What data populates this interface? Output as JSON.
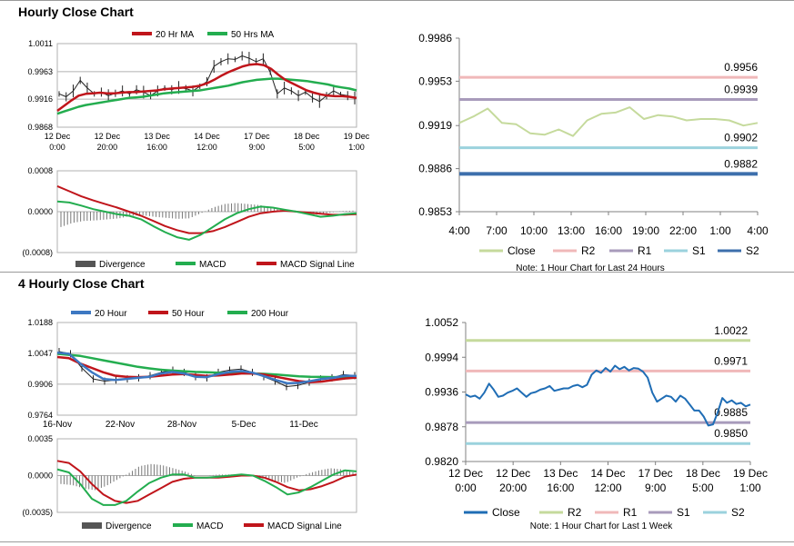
{
  "sections": {
    "hourly_title": "Hourly Close Chart",
    "four_hourly_title": "4 Hourly Close Chart"
  },
  "colors": {
    "ma_short": "#c0151b",
    "ma_mid": "#23ad4f",
    "ma_long_blue": "#3d78c2",
    "price": "#222222",
    "close_green": "#c5da9c",
    "r2": "#f0b8b9",
    "r1": "#a89bbb",
    "s1": "#9bd2dd",
    "s2": "#3d6fac",
    "close_blue": "#1f6db5",
    "r2_green": "#c5da9c",
    "r1_pink": "#f0b8b9",
    "s1_purple": "#a89bbb",
    "s2_cyan": "#9bd2dd",
    "divergence": "#777777"
  },
  "chart_data": [
    {
      "id": "hourly_price",
      "type": "line",
      "legend": [
        "20 Hr MA",
        "50 Hrs MA"
      ],
      "yticks": [
        "1.0011",
        "0.9963",
        "0.9916",
        "0.9868"
      ],
      "ylim": [
        0.9868,
        1.0011
      ],
      "xticks": [
        [
          "12 Dec",
          "0:00"
        ],
        [
          "12 Dec",
          "20:00"
        ],
        [
          "13 Dec",
          "16:00"
        ],
        [
          "14 Dec",
          "12:00"
        ],
        [
          "17 Dec",
          "9:00"
        ],
        [
          "18 Dec",
          "5:00"
        ],
        [
          "19 Dec",
          "1:00"
        ]
      ],
      "series": [
        {
          "name": "Price",
          "values": [
            0.9925,
            0.992,
            0.993,
            0.9948,
            0.9935,
            0.9925,
            0.9928,
            0.9922,
            0.9926,
            0.993,
            0.9925,
            0.9932,
            0.9928,
            0.9922,
            0.993,
            0.9935,
            0.9932,
            0.9936,
            0.9934,
            0.993,
            0.9938,
            0.9946,
            0.9972,
            0.998,
            0.9985,
            0.9984,
            0.999,
            0.9986,
            0.998,
            0.9985,
            0.9962,
            0.9925,
            0.9935,
            0.993,
            0.9922,
            0.9928,
            0.9918,
            0.9912,
            0.9922,
            0.993,
            0.9924,
            0.9922,
            0.9918
          ]
        },
        {
          "name": "20 Hr MA",
          "values": [
            0.9896,
            0.9905,
            0.9914,
            0.9922,
            0.9925,
            0.9926,
            0.9927,
            0.9926,
            0.9926,
            0.9927,
            0.9928,
            0.9928,
            0.9929,
            0.993,
            0.9931,
            0.9933,
            0.9934,
            0.9935,
            0.9936,
            0.9937,
            0.9939,
            0.9943,
            0.9949,
            0.9956,
            0.9962,
            0.9967,
            0.9972,
            0.9975,
            0.9976,
            0.9974,
            0.9968,
            0.9958,
            0.9949,
            0.9943,
            0.9937,
            0.9931,
            0.9927,
            0.9924,
            0.9922,
            0.9921,
            0.9921,
            0.992,
            0.9918
          ]
        },
        {
          "name": "50 Hrs MA",
          "values": [
            0.9891,
            0.9895,
            0.9899,
            0.9903,
            0.9906,
            0.9908,
            0.991,
            0.9912,
            0.9914,
            0.9916,
            0.9918,
            0.9919,
            0.992,
            0.9922,
            0.9924,
            0.9926,
            0.9927,
            0.9928,
            0.9929,
            0.993,
            0.9931,
            0.9933,
            0.9935,
            0.9937,
            0.9939,
            0.9942,
            0.9945,
            0.9947,
            0.9949,
            0.995,
            0.9951,
            0.9951,
            0.995,
            0.9949,
            0.9948,
            0.9947,
            0.9945,
            0.9943,
            0.9941,
            0.9938,
            0.9936,
            0.9934,
            0.9931
          ]
        }
      ]
    },
    {
      "id": "hourly_macd",
      "type": "line",
      "legend": [
        "Divergence",
        "MACD",
        "MACD Signal Line"
      ],
      "yticks": [
        "0.0008",
        "0.0000",
        "(0.0008)"
      ],
      "ylim": [
        -0.0008,
        0.0008
      ],
      "series": [
        {
          "name": "MACD",
          "values": [
            0.0002,
            0.00018,
            0.00012,
            5e-05,
            0.0,
            -5e-05,
            -8e-05,
            -0.00015,
            -0.00028,
            -0.0004,
            -0.0005,
            -0.00055,
            -0.00045,
            -0.0003,
            -0.00015,
            -3e-05,
            5e-05,
            0.0001,
            8e-05,
            4e-05,
            0.0,
            -5e-05,
            -0.0001,
            -8e-05,
            -5e-05,
            -3e-05
          ]
        },
        {
          "name": "MACD Signal Line",
          "values": [
            0.0005,
            0.0004,
            0.0003,
            0.00022,
            0.00015,
            8e-05,
            0.0,
            -8e-05,
            -0.00018,
            -0.00028,
            -0.00036,
            -0.00042,
            -0.00042,
            -0.00038,
            -0.0003,
            -0.0002,
            -0.0001,
            -3e-05,
            0.0,
            2e-05,
            0.0,
            -2e-05,
            -4e-05,
            -6e-05,
            -6e-05,
            -5e-05
          ]
        },
        {
          "name": "Divergence",
          "values": [
            -0.0003,
            -0.00022,
            -0.00018,
            -0.00017,
            -0.00015,
            -0.00013,
            -8e-05,
            -7e-05,
            -0.0001,
            -0.00012,
            -0.00014,
            -0.00013,
            -3e-05,
            8e-05,
            0.00015,
            0.00017,
            0.00015,
            0.00013,
            8e-05,
            2e-05,
            0.0,
            -3e-05,
            -6e-05,
            -2e-05,
            1e-05,
            2e-05
          ]
        }
      ]
    },
    {
      "id": "hourly_pivots",
      "type": "line",
      "yticks": [
        "0.9986",
        "0.9953",
        "0.9919",
        "0.9886",
        "0.9853"
      ],
      "ylim": [
        0.9853,
        0.9986
      ],
      "xticks": [
        "4:00",
        "7:00",
        "10:00",
        "13:00",
        "16:00",
        "19:00",
        "22:00",
        "1:00",
        "4:00"
      ],
      "legend": [
        "Close",
        "R2",
        "R1",
        "S1",
        "S2"
      ],
      "note": "Note: 1 Hour Chart for Last 24 Hours",
      "levels": [
        {
          "name": "R2",
          "value": 0.9956,
          "label": "0.9956"
        },
        {
          "name": "R1",
          "value": 0.9939,
          "label": "0.9939"
        },
        {
          "name": "S1",
          "value": 0.9902,
          "label": "0.9902"
        },
        {
          "name": "S2",
          "value": 0.9882,
          "label": "0.9882"
        }
      ],
      "series": [
        {
          "name": "Close",
          "values": [
            0.9921,
            0.9926,
            0.9932,
            0.9921,
            0.992,
            0.9913,
            0.9912,
            0.9916,
            0.9911,
            0.9923,
            0.9928,
            0.9929,
            0.9933,
            0.9924,
            0.9927,
            0.9926,
            0.9923,
            0.9924,
            0.9924,
            0.9923,
            0.9919,
            0.9921
          ]
        }
      ]
    },
    {
      "id": "four_hourly_price",
      "type": "line",
      "legend": [
        "20 Hour",
        "50 Hour",
        "200 Hour"
      ],
      "yticks": [
        "1.0188",
        "1.0047",
        "0.9906",
        "0.9764"
      ],
      "ylim": [
        0.9764,
        1.0188
      ],
      "xticks": [
        "16-Nov",
        "22-Nov",
        "28-Nov",
        "5-Dec",
        "11-Dec"
      ],
      "series": [
        {
          "name": "Price",
          "values": [
            1.0055,
            1.0045,
            0.998,
            0.993,
            0.992,
            0.9925,
            0.993,
            0.9935,
            0.9945,
            0.996,
            0.997,
            0.996,
            0.994,
            0.9935,
            0.996,
            0.997,
            0.9975,
            0.996,
            0.994,
            0.992,
            0.9895,
            0.99,
            0.9915,
            0.993,
            0.9935,
            0.995,
            0.9945
          ]
        },
        {
          "name": "20 Hour",
          "values": [
            1.005,
            1.0045,
            1.0,
            0.996,
            0.993,
            0.9925,
            0.993,
            0.9935,
            0.994,
            0.9955,
            0.9962,
            0.9955,
            0.994,
            0.9938,
            0.9952,
            0.9962,
            0.9966,
            0.9958,
            0.9942,
            0.9925,
            0.991,
            0.9912,
            0.992,
            0.993,
            0.9935,
            0.9945,
            0.9943
          ]
        },
        {
          "name": "50 Hour",
          "values": [
            1.003,
            1.0025,
            1.0,
            0.998,
            0.996,
            0.9945,
            0.994,
            0.9938,
            0.994,
            0.9945,
            0.995,
            0.9952,
            0.9948,
            0.9944,
            0.9946,
            0.995,
            0.9955,
            0.9955,
            0.995,
            0.994,
            0.993,
            0.992,
            0.9915,
            0.9918,
            0.9925,
            0.9932,
            0.9936
          ]
        },
        {
          "name": "200 Hour",
          "values": [
            1.0045,
            1.004,
            1.0035,
            1.0025,
            1.0015,
            1.0005,
            0.9995,
            0.9985,
            0.9978,
            0.9972,
            0.9968,
            0.9965,
            0.9962,
            0.996,
            0.9958,
            0.9957,
            0.9956,
            0.9955,
            0.9953,
            0.995,
            0.9946,
            0.9942,
            0.994,
            0.9939,
            0.9938,
            0.9938,
            0.9938
          ]
        }
      ]
    },
    {
      "id": "four_hourly_macd",
      "type": "line",
      "legend": [
        "Divergence",
        "MACD",
        "MACD Signal Line"
      ],
      "yticks": [
        "0.0035",
        "0.0000",
        "(0.0035)"
      ],
      "ylim": [
        -0.0035,
        0.0035
      ],
      "series": [
        {
          "name": "MACD",
          "values": [
            0.0006,
            0.0003,
            -0.0008,
            -0.0022,
            -0.0028,
            -0.0028,
            -0.0024,
            -0.0015,
            -0.0007,
            -0.0002,
            0.0001,
            0.0001,
            -0.0002,
            -0.0002,
            -0.0001,
            0.0,
            0.0001,
            0.0,
            -0.0005,
            -0.0011,
            -0.0018,
            -0.0016,
            -0.0011,
            -0.0005,
            0.0001,
            0.0005,
            0.0004
          ]
        },
        {
          "name": "MACD Signal Line",
          "values": [
            0.0014,
            0.0012,
            0.0004,
            -0.0008,
            -0.0018,
            -0.0024,
            -0.0026,
            -0.0024,
            -0.0018,
            -0.0012,
            -0.0006,
            -0.0003,
            -0.0002,
            -0.0002,
            -0.0002,
            -0.0001,
            0.0,
            0.0,
            -0.0002,
            -0.0006,
            -0.0011,
            -0.0014,
            -0.0013,
            -0.001,
            -0.0006,
            -0.0001,
            0.0001
          ]
        },
        {
          "name": "Divergence",
          "values": [
            -0.0008,
            -0.0009,
            -0.0012,
            -0.0014,
            -0.001,
            -0.0004,
            0.0002,
            0.0009,
            0.0011,
            0.001,
            0.0007,
            0.0004,
            0.0,
            0.0,
            0.0001,
            0.0001,
            0.0001,
            0.0,
            -0.0003,
            -0.0005,
            -0.0007,
            -0.0002,
            0.0002,
            0.0005,
            0.0007,
            0.0006,
            0.0003
          ]
        }
      ]
    },
    {
      "id": "four_hourly_pivots",
      "type": "line",
      "yticks": [
        "1.0052",
        "0.9994",
        "0.9936",
        "0.9878",
        "0.9820"
      ],
      "ylim": [
        0.982,
        1.0052
      ],
      "xticks": [
        [
          "12 Dec",
          "0:00"
        ],
        [
          "12 Dec",
          "20:00"
        ],
        [
          "13 Dec",
          "16:00"
        ],
        [
          "14 Dec",
          "12:00"
        ],
        [
          "17 Dec",
          "9:00"
        ],
        [
          "18 Dec",
          "5:00"
        ],
        [
          "19 Dec",
          "1:00"
        ]
      ],
      "legend": [
        "Close",
        "R2",
        "R1",
        "S1",
        "S2"
      ],
      "note": "Note: 1 Hour Chart for Last 1 Week",
      "levels": [
        {
          "name": "R2",
          "value": 1.0022,
          "label": "1.0022"
        },
        {
          "name": "R1",
          "value": 0.9971,
          "label": "0.9971"
        },
        {
          "name": "S1",
          "value": 0.9885,
          "label": "0.9885"
        },
        {
          "name": "S2",
          "value": 0.985,
          "label": "0.9850"
        }
      ],
      "series": [
        {
          "name": "Close",
          "values": [
            0.9932,
            0.9928,
            0.993,
            0.9925,
            0.9935,
            0.995,
            0.994,
            0.9928,
            0.993,
            0.9935,
            0.9938,
            0.9942,
            0.9935,
            0.9928,
            0.9934,
            0.9936,
            0.994,
            0.9942,
            0.9946,
            0.9938,
            0.994,
            0.9942,
            0.9942,
            0.9946,
            0.9948,
            0.9944,
            0.9948,
            0.9965,
            0.9972,
            0.9968,
            0.9976,
            0.997,
            0.998,
            0.9974,
            0.9978,
            0.9972,
            0.9976,
            0.9975,
            0.997,
            0.996,
            0.9935,
            0.992,
            0.9925,
            0.993,
            0.9928,
            0.992,
            0.993,
            0.9925,
            0.9915,
            0.9905,
            0.9905,
            0.9895,
            0.988,
            0.9882,
            0.9902,
            0.9926,
            0.9918,
            0.9922,
            0.9916,
            0.9918,
            0.9912,
            0.9915
          ]
        }
      ]
    }
  ]
}
